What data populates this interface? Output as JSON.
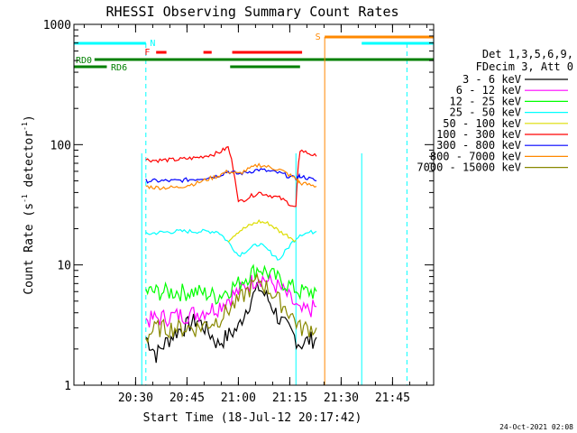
{
  "chart_data": {
    "type": "line",
    "title": "RHESSI Observing Summary Count Rates",
    "xlabel": "Start Time (18-Jul-12 20:17:42)",
    "ylabel": "Count Rate (s",
    "ylabel_sup1": "-1",
    "ylabel_mid": " detector",
    "ylabel_sup2": "-1",
    "ylabel_end": ")",
    "y_scale": "log",
    "ylim": [
      1,
      1000
    ],
    "xlim_minutes": [
      20.2,
      21.95
    ],
    "x_ticks": [
      {
        "v": 20.5,
        "label": "20:30"
      },
      {
        "v": 20.75,
        "label": "20:45"
      },
      {
        "v": 21.0,
        "label": "21:00"
      },
      {
        "v": 21.25,
        "label": "21:15"
      },
      {
        "v": 21.5,
        "label": "21:30"
      },
      {
        "v": 21.75,
        "label": "21:45"
      }
    ],
    "y_ticks": [
      {
        "v": 1,
        "label": "1"
      },
      {
        "v": 10,
        "label": "10"
      },
      {
        "v": 100,
        "label": "100"
      },
      {
        "v": 1000,
        "label": "1000"
      }
    ],
    "legend": {
      "header1": "Det 1,3,5,6,9,",
      "header2": "FDecim 3, Att 0",
      "placement": "right-outside"
    },
    "series": [
      {
        "name": "3 - 6 keV",
        "color": "#000000",
        "x": [
          20.55,
          20.6,
          20.7,
          20.8,
          20.9,
          21.0,
          21.1,
          21.2,
          21.3,
          21.38
        ],
        "y": [
          2.5,
          1.8,
          2.8,
          3.5,
          2.2,
          3.0,
          6.5,
          3.5,
          2.2,
          2.5
        ]
      },
      {
        "name": "6 - 12 keV",
        "color": "#ff00ff",
        "x": [
          20.55,
          20.6,
          20.7,
          20.8,
          20.9,
          21.0,
          21.1,
          21.2,
          21.3,
          21.38
        ],
        "y": [
          3.5,
          3.6,
          3.8,
          4.0,
          4.5,
          6.0,
          8.0,
          6.5,
          4.0,
          4.5
        ]
      },
      {
        "name": "12 - 25 keV",
        "color": "#00ff00",
        "x": [
          20.55,
          20.6,
          20.7,
          20.8,
          20.9,
          21.0,
          21.1,
          21.2,
          21.3,
          21.38
        ],
        "y": [
          6.0,
          6.0,
          6.0,
          6.0,
          5.5,
          7.0,
          9.5,
          7.5,
          6.0,
          6.0
        ]
      },
      {
        "name": "25 - 50 keV",
        "color": "#00ffff",
        "x": [
          20.55,
          20.6,
          20.7,
          20.8,
          20.9,
          21.0,
          21.1,
          21.2,
          21.3,
          21.38
        ],
        "y": [
          18,
          18.5,
          19,
          19,
          19,
          12,
          15,
          11,
          18,
          19
        ]
      },
      {
        "name": "50 - 100 keV",
        "color": "#dddd00",
        "x": [
          20.95,
          21.0,
          21.05,
          21.1,
          21.15,
          21.2,
          21.28
        ],
        "y": [
          16,
          19,
          21,
          23,
          22,
          19,
          16
        ]
      },
      {
        "name": "100 - 300 keV",
        "color": "#ff0000",
        "x": [
          20.55,
          20.6,
          20.7,
          20.8,
          20.9,
          20.95,
          21.0,
          21.1,
          21.2,
          21.28,
          21.3,
          21.38
        ],
        "y": [
          75,
          74,
          75,
          78,
          85,
          95,
          33,
          40,
          36,
          30,
          90,
          80
        ]
      },
      {
        "name": "300 - 800 keV",
        "color": "#0000ff",
        "x": [
          20.55,
          20.6,
          20.7,
          20.8,
          20.9,
          20.95,
          21.0,
          21.1,
          21.2,
          21.28,
          21.3,
          21.38
        ],
        "y": [
          50,
          50,
          50,
          52,
          55,
          60,
          57,
          62,
          58,
          52,
          55,
          50
        ]
      },
      {
        "name": "800 - 7000 keV",
        "color": "#ff8800",
        "x": [
          20.55,
          20.6,
          20.7,
          20.8,
          20.9,
          20.95,
          21.0,
          21.1,
          21.2,
          21.28,
          21.3,
          21.38
        ],
        "y": [
          45,
          44,
          44,
          48,
          55,
          60,
          57,
          68,
          62,
          52,
          48,
          45
        ]
      },
      {
        "name": "7000 - 15000 keV",
        "color": "#888800",
        "x": [
          20.55,
          20.6,
          20.7,
          20.8,
          20.9,
          21.0,
          21.1,
          21.2,
          21.3,
          21.38
        ],
        "y": [
          2.5,
          3.0,
          3.0,
          3.0,
          3.5,
          5.0,
          7.5,
          5.0,
          3.0,
          3.0
        ]
      }
    ],
    "flags": [
      {
        "label": "N",
        "color": "#00ffff"
      },
      {
        "label": "F",
        "color": "#ff0000"
      },
      {
        "label": "RD0",
        "color": "#008000"
      },
      {
        "label": "RD6",
        "color": "#008000"
      },
      {
        "label": "S",
        "color": "#ff8800"
      }
    ]
  },
  "footer": {
    "date_stamp": "24-Oct-2021 02:08"
  }
}
